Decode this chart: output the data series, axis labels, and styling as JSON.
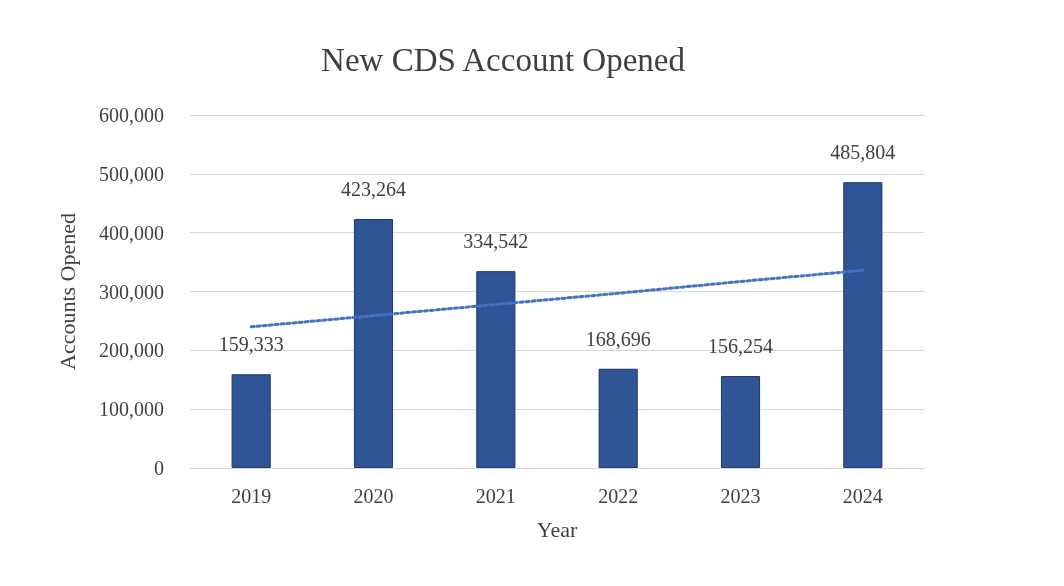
{
  "chart_data": {
    "type": "bar",
    "title": "New CDS Account Opened",
    "xlabel": "Year",
    "ylabel": "Accounts Opened",
    "categories": [
      "2019",
      "2020",
      "2021",
      "2022",
      "2023",
      "2024"
    ],
    "series": [
      {
        "color": "#2f5597",
        "values": [
          159333,
          423264,
          334542,
          168696,
          156254,
          485804
        ],
        "value_labels": [
          "159,333",
          "423,264",
          "334,542",
          "168,696",
          "156,254",
          "485,804"
        ]
      },
      {
        "type": "line",
        "color": "#4472c4",
        "line_style": "dotted",
        "marker": "none",
        "values": [
          240000,
          259000,
          278000,
          297000,
          317000,
          336000
        ]
      }
    ],
    "ylim": [
      0,
      600000
    ],
    "yticks": [
      {
        "value": 0,
        "label": "0"
      },
      {
        "value": 100000,
        "label": "100,000"
      },
      {
        "value": 200000,
        "label": "200,000"
      },
      {
        "value": 300000,
        "label": "300,000"
      },
      {
        "value": 400000,
        "label": "400,000"
      },
      {
        "value": 500000,
        "label": "500,000"
      },
      {
        "value": 600000,
        "label": "600,000"
      }
    ],
    "grid": "y"
  }
}
